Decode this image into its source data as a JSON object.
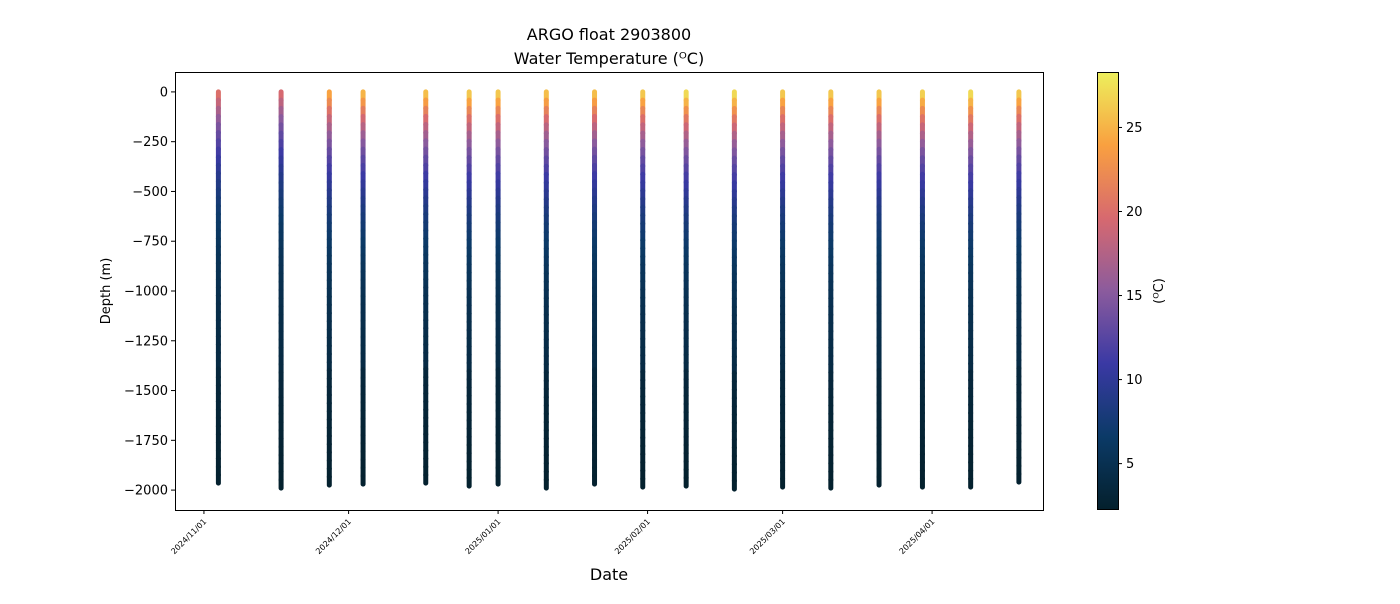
{
  "chart_data": {
    "type": "scatter",
    "title": "ARGO float 2903800",
    "subtitle": "Water Temperature (ᴼC)",
    "xlabel": "Date",
    "ylabel": "Depth (m)",
    "colorbar_label": "(ᴼC)",
    "colormap": "thermal",
    "colormap_stops": [
      "#04202c",
      "#0b3a67",
      "#3a39a4",
      "#8b5b9d",
      "#d7696f",
      "#f9a040",
      "#edef5c"
    ],
    "xlim": [
      "2024-10-26",
      "2025-04-24"
    ],
    "ylim": [
      -2100,
      100
    ],
    "clim": [
      2.3,
      28.3
    ],
    "xticks": [
      "2024/11/01",
      "2024/12/01",
      "2025/01/01",
      "2025/02/01",
      "2025/03/01",
      "2025/04/01"
    ],
    "yticks": [
      0,
      -250,
      -500,
      -750,
      -1000,
      -1250,
      -1500,
      -1750,
      -2000
    ],
    "colorbar_ticks": [
      5,
      10,
      15,
      20,
      25
    ],
    "profiles": [
      {
        "date": "2024-11-04",
        "surface_temp": 20.5,
        "max_depth": -1965
      },
      {
        "date": "2024-11-17",
        "surface_temp": 20.0,
        "max_depth": -1990
      },
      {
        "date": "2024-11-27",
        "surface_temp": 24.5,
        "max_depth": -1975
      },
      {
        "date": "2024-12-04",
        "surface_temp": 25.5,
        "max_depth": -1970
      },
      {
        "date": "2024-12-17",
        "surface_temp": 26.0,
        "max_depth": -1965
      },
      {
        "date": "2024-12-26",
        "surface_temp": 26.5,
        "max_depth": -1980
      },
      {
        "date": "2025-01-01",
        "surface_temp": 26.5,
        "max_depth": -1970
      },
      {
        "date": "2025-01-11",
        "surface_temp": 26.0,
        "max_depth": -1990
      },
      {
        "date": "2025-01-21",
        "surface_temp": 26.0,
        "max_depth": -1970
      },
      {
        "date": "2025-01-31",
        "surface_temp": 26.5,
        "max_depth": -1985
      },
      {
        "date": "2025-02-09",
        "surface_temp": 27.5,
        "max_depth": -1980
      },
      {
        "date": "2025-02-19",
        "surface_temp": 27.5,
        "max_depth": -1995
      },
      {
        "date": "2025-03-01",
        "surface_temp": 26.5,
        "max_depth": -1985
      },
      {
        "date": "2025-03-11",
        "surface_temp": 26.5,
        "max_depth": -1990
      },
      {
        "date": "2025-03-21",
        "surface_temp": 26.5,
        "max_depth": -1975
      },
      {
        "date": "2025-03-30",
        "surface_temp": 27.0,
        "max_depth": -1985
      },
      {
        "date": "2025-04-09",
        "surface_temp": 27.5,
        "max_depth": -1985
      },
      {
        "date": "2025-04-19",
        "surface_temp": 26.5,
        "max_depth": -1960
      }
    ]
  }
}
